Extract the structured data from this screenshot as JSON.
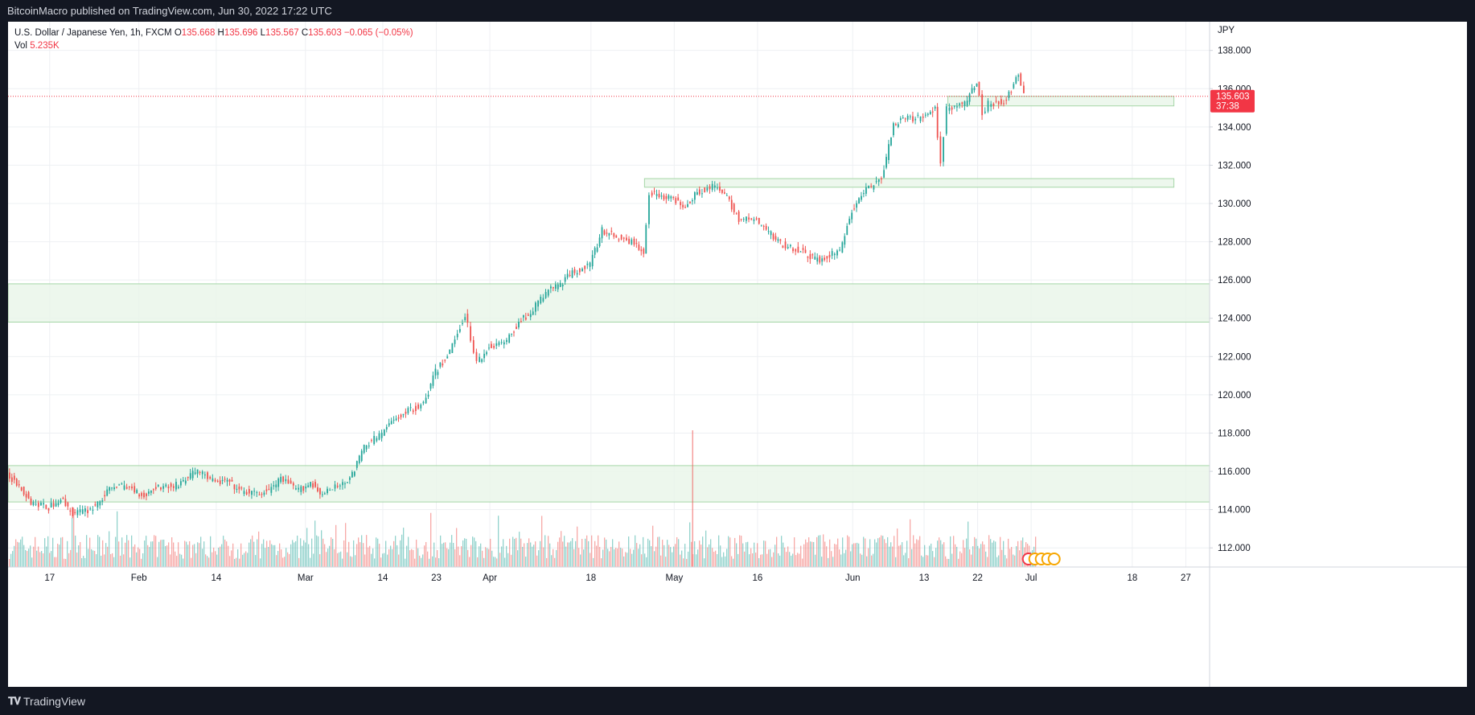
{
  "header": {
    "published": "BitcoinMacro published on TradingView.com, Jun 30, 2022 17:22 UTC"
  },
  "footer": {
    "brand": "TradingView",
    "logo_icon": "tradingview-logo-icon"
  },
  "legend": {
    "symbol": "U.S. Dollar / Japanese Yen, 1h, FXCM",
    "o_label": "O",
    "o": "135.668",
    "h_label": "H",
    "h": "135.696",
    "l_label": "L",
    "l": "135.567",
    "c_label": "C",
    "c": "135.603",
    "change": "−0.065 (−0.05%)",
    "vol_label": "Vol",
    "vol": "5.235K"
  },
  "chart_data": {
    "type": "line",
    "title": "U.S. Dollar / Japanese Yen, 1h, FXCM",
    "currency_label": "JPY",
    "ylim": [
      111,
      139.5
    ],
    "y_ticks": [
      "112.000",
      "114.000",
      "116.000",
      "118.000",
      "120.000",
      "122.000",
      "124.000",
      "126.000",
      "128.000",
      "130.000",
      "132.000",
      "134.000",
      "136.000",
      "138.000"
    ],
    "x_ticks": [
      {
        "label": "17",
        "date": "2022-01-17"
      },
      {
        "label": "Feb",
        "date": "2022-02-01"
      },
      {
        "label": "14",
        "date": "2022-02-14"
      },
      {
        "label": "Mar",
        "date": "2022-03-01"
      },
      {
        "label": "14",
        "date": "2022-03-14"
      },
      {
        "label": "23",
        "date": "2022-03-23"
      },
      {
        "label": "Apr",
        "date": "2022-04-01"
      },
      {
        "label": "18",
        "date": "2022-04-18"
      },
      {
        "label": "May",
        "date": "2022-05-02"
      },
      {
        "label": "16",
        "date": "2022-05-16"
      },
      {
        "label": "Jun",
        "date": "2022-06-01"
      },
      {
        "label": "13",
        "date": "2022-06-13"
      },
      {
        "label": "22",
        "date": "2022-06-22"
      },
      {
        "label": "Jul",
        "date": "2022-07-01"
      },
      {
        "label": "18",
        "date": "2022-07-18"
      },
      {
        "label": "27",
        "date": "2022-07-27"
      }
    ],
    "series": [
      {
        "values": [
          {
            "date": "2022-01-10",
            "close": 115.8
          },
          {
            "date": "2022-01-12",
            "close": 115.3
          },
          {
            "date": "2022-01-14",
            "close": 114.4
          },
          {
            "date": "2022-01-17",
            "close": 114.1
          },
          {
            "date": "2022-01-19",
            "close": 114.6
          },
          {
            "date": "2022-01-21",
            "close": 113.8
          },
          {
            "date": "2022-01-24",
            "close": 114.0
          },
          {
            "date": "2022-01-26",
            "close": 114.6
          },
          {
            "date": "2022-01-28",
            "close": 115.3
          },
          {
            "date": "2022-01-31",
            "close": 115.1
          },
          {
            "date": "2022-02-02",
            "close": 114.7
          },
          {
            "date": "2022-02-04",
            "close": 115.2
          },
          {
            "date": "2022-02-07",
            "close": 115.2
          },
          {
            "date": "2022-02-09",
            "close": 115.6
          },
          {
            "date": "2022-02-11",
            "close": 116.1
          },
          {
            "date": "2022-02-14",
            "close": 115.4
          },
          {
            "date": "2022-02-16",
            "close": 115.5
          },
          {
            "date": "2022-02-18",
            "close": 115.0
          },
          {
            "date": "2022-02-21",
            "close": 114.8
          },
          {
            "date": "2022-02-23",
            "close": 115.0
          },
          {
            "date": "2022-02-25",
            "close": 115.6
          },
          {
            "date": "2022-02-28",
            "close": 115.0
          },
          {
            "date": "2022-03-02",
            "close": 115.4
          },
          {
            "date": "2022-03-04",
            "close": 114.8
          },
          {
            "date": "2022-03-07",
            "close": 115.3
          },
          {
            "date": "2022-03-09",
            "close": 115.8
          },
          {
            "date": "2022-03-11",
            "close": 117.3
          },
          {
            "date": "2022-03-14",
            "close": 118.0
          },
          {
            "date": "2022-03-16",
            "close": 118.7
          },
          {
            "date": "2022-03-18",
            "close": 119.1
          },
          {
            "date": "2022-03-21",
            "close": 119.5
          },
          {
            "date": "2022-03-23",
            "close": 121.2
          },
          {
            "date": "2022-03-25",
            "close": 122.0
          },
          {
            "date": "2022-03-28",
            "close": 124.2
          },
          {
            "date": "2022-03-29",
            "close": 123.0
          },
          {
            "date": "2022-03-30",
            "close": 121.7
          },
          {
            "date": "2022-04-01",
            "close": 122.5
          },
          {
            "date": "2022-04-04",
            "close": 122.8
          },
          {
            "date": "2022-04-06",
            "close": 123.8
          },
          {
            "date": "2022-04-08",
            "close": 124.3
          },
          {
            "date": "2022-04-11",
            "close": 125.5
          },
          {
            "date": "2022-04-13",
            "close": 125.8
          },
          {
            "date": "2022-04-15",
            "close": 126.4
          },
          {
            "date": "2022-04-18",
            "close": 126.8
          },
          {
            "date": "2022-04-20",
            "close": 128.6
          },
          {
            "date": "2022-04-22",
            "close": 128.3
          },
          {
            "date": "2022-04-25",
            "close": 128.0
          },
          {
            "date": "2022-04-27",
            "close": 127.4
          },
          {
            "date": "2022-04-28",
            "close": 130.6
          },
          {
            "date": "2022-05-02",
            "close": 130.2
          },
          {
            "date": "2022-05-04",
            "close": 129.9
          },
          {
            "date": "2022-05-06",
            "close": 130.6
          },
          {
            "date": "2022-05-09",
            "close": 130.9
          },
          {
            "date": "2022-05-11",
            "close": 130.3
          },
          {
            "date": "2022-05-13",
            "close": 129.2
          },
          {
            "date": "2022-05-16",
            "close": 129.1
          },
          {
            "date": "2022-05-18",
            "close": 128.5
          },
          {
            "date": "2022-05-20",
            "close": 127.9
          },
          {
            "date": "2022-05-23",
            "close": 127.6
          },
          {
            "date": "2022-05-25",
            "close": 127.2
          },
          {
            "date": "2022-05-27",
            "close": 127.0
          },
          {
            "date": "2022-05-30",
            "close": 127.6
          },
          {
            "date": "2022-06-01",
            "close": 129.6
          },
          {
            "date": "2022-06-03",
            "close": 130.6
          },
          {
            "date": "2022-06-06",
            "close": 131.3
          },
          {
            "date": "2022-06-08",
            "close": 134.1
          },
          {
            "date": "2022-06-10",
            "close": 134.4
          },
          {
            "date": "2022-06-13",
            "close": 134.5
          },
          {
            "date": "2022-06-15",
            "close": 134.9
          },
          {
            "date": "2022-06-16",
            "close": 132.2
          },
          {
            "date": "2022-06-17",
            "close": 135.0
          },
          {
            "date": "2022-06-20",
            "close": 135.2
          },
          {
            "date": "2022-06-22",
            "close": 136.4
          },
          {
            "date": "2022-06-23",
            "close": 134.7
          },
          {
            "date": "2022-06-24",
            "close": 135.2
          },
          {
            "date": "2022-06-27",
            "close": 135.4
          },
          {
            "date": "2022-06-29",
            "close": 136.8
          },
          {
            "date": "2022-06-30",
            "close": 135.603
          }
        ]
      }
    ],
    "last_price_label": "135.603",
    "countdown_label": "37:38",
    "zones": [
      {
        "from": "2022-01-10",
        "to": "2022-07-31",
        "low": 114.4,
        "high": 116.3
      },
      {
        "from": "2022-01-10",
        "to": "2022-07-31",
        "low": 123.8,
        "high": 125.8
      },
      {
        "from": "2022-04-27",
        "to": "2022-07-25",
        "low": 130.85,
        "high": 131.3
      },
      {
        "from": "2022-06-17",
        "to": "2022-07-25",
        "low": 135.1,
        "high": 135.6
      }
    ],
    "volume_peak": {
      "date": "2022-05-05",
      "label": "spike"
    },
    "colors": {
      "up": "#26a69a",
      "down": "#ef5350",
      "zone": "#e8f5e9",
      "zone_border": "#a5d6a7",
      "price_line": "#f23645"
    },
    "grid": true
  }
}
